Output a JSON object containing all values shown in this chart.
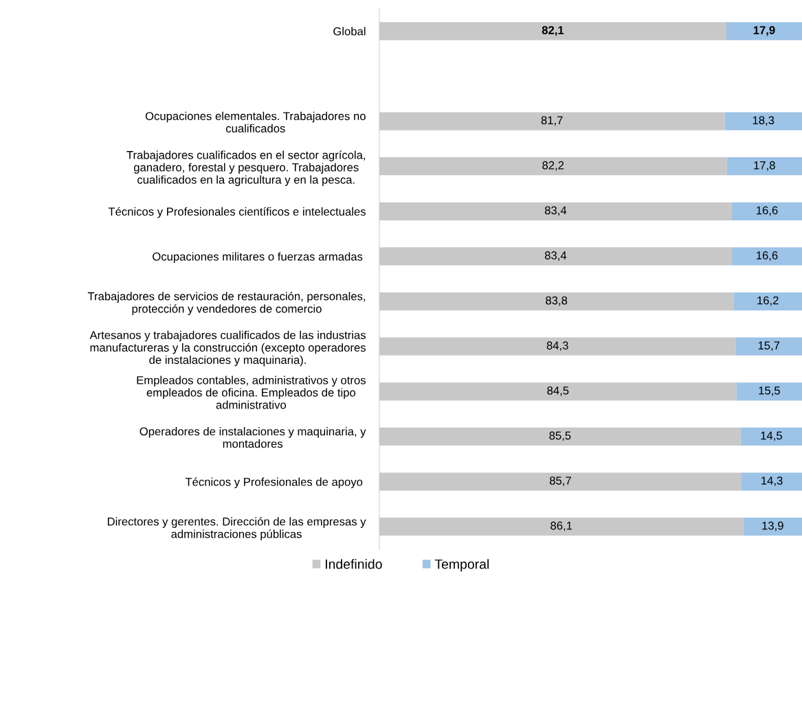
{
  "chart_data": {
    "type": "bar",
    "orientation": "horizontal",
    "stacked": true,
    "categories": [
      "Global",
      null,
      "Ocupaciones elementales. Trabajadores no\ncualificados",
      "Trabajadores cualificados en el sector agrícola,\nganadero, forestal y pesquero. Trabajadores\ncualificados en la agricultura y en la pesca.",
      "Técnicos y Profesionales científicos e intelectuales",
      "Ocupaciones militares o fuerzas armadas ",
      "Trabajadores de servicios de restauración, personales,\nprotección y vendedores de comercio",
      "Artesanos y trabajadores cualificados de las industrias\nmanufactureras y la construcción (excepto operadores\nde instalaciones y maquinaria).",
      "Empleados contables, administrativos y otros\nempleados de oficina. Empleados de tipo\nadministrativo",
      "Operadores de instalaciones y maquinaria, y\nmontadores",
      "Técnicos y Profesionales de apoyo ",
      "Directores y gerentes. Dirección de las empresas y\nadministraciones públicas"
    ],
    "series": [
      {
        "name": "Indefinido",
        "color": "#c8c8c8",
        "values": [
          82.1,
          null,
          81.7,
          82.2,
          83.4,
          83.4,
          83.8,
          84.3,
          84.5,
          85.5,
          85.7,
          86.1
        ],
        "value_labels": [
          "82,1",
          null,
          "81,7",
          "82,2",
          "83,4",
          "83,4",
          "83,8",
          "84,3",
          "84,5",
          "85,5",
          "85,7",
          "86,1"
        ]
      },
      {
        "name": "Temporal",
        "color": "#9dc3e6",
        "values": [
          17.9,
          null,
          18.3,
          17.8,
          16.6,
          16.6,
          16.2,
          15.7,
          15.5,
          14.5,
          14.3,
          13.9
        ],
        "value_labels": [
          "17,9",
          null,
          "18,3",
          "17,8",
          "16,6",
          "16,6",
          "16,2",
          "15,7",
          "15,5",
          "14,5",
          "14,3",
          "13,9"
        ]
      }
    ],
    "legend": "bottom"
  }
}
